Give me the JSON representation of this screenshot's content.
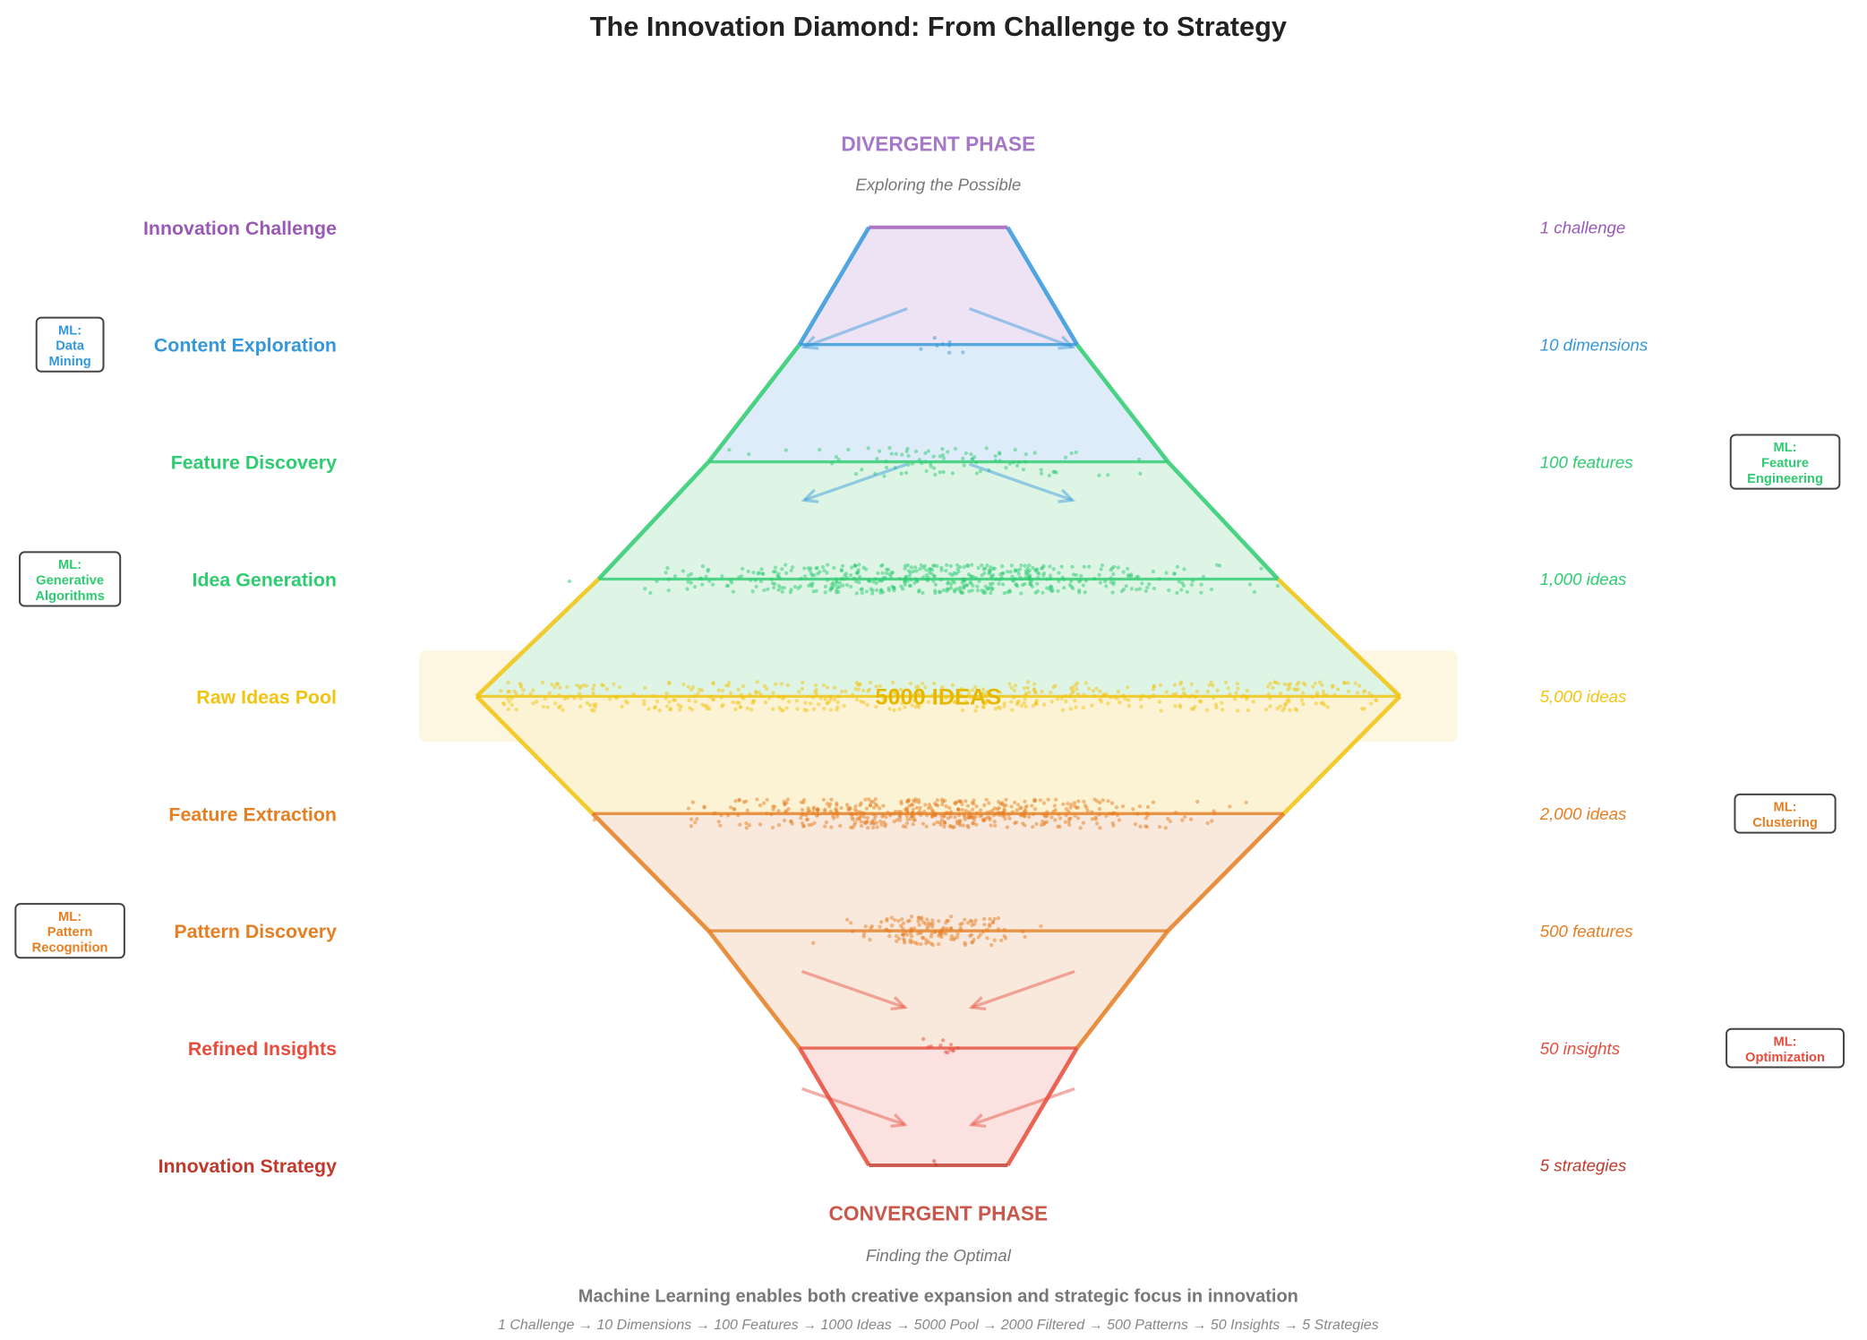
{
  "title": "The Innovation Diamond: From Challenge to Strategy",
  "divergent": {
    "label": "DIVERGENT PHASE",
    "subtitle": "Exploring the Possible",
    "color": "#a678c8"
  },
  "convergent": {
    "label": "CONVERGENT PHASE",
    "subtitle": "Finding the Optimal",
    "color": "#c9574b"
  },
  "center_label": "5000 IDEAS",
  "footer": {
    "main": "Machine Learning enables both creative expansion and strategic focus in innovation",
    "flow": "1 Challenge → 10 Dimensions → 100 Features → 1000 Ideas → 5000 Pool → 2000 Filtered → 500 Patterns → 50 Insights → 5 Strategies"
  },
  "chart_data": {
    "type": "diamond",
    "stages": [
      {
        "name": "Innovation Challenge",
        "count_label": "1 challenge",
        "count": 1,
        "color": "#9b59b6"
      },
      {
        "name": "Content Exploration",
        "count_label": "10 dimensions",
        "count": 10,
        "color": "#3498db"
      },
      {
        "name": "Feature Discovery",
        "count_label": "100 features",
        "count": 100,
        "color": "#2ecc71"
      },
      {
        "name": "Idea Generation",
        "count_label": "1,000 ideas",
        "count": 1000,
        "color": "#2ecc71"
      },
      {
        "name": "Raw Ideas Pool",
        "count_label": "5,000 ideas",
        "count": 5000,
        "color": "#f1c40f"
      },
      {
        "name": "Feature Extraction",
        "count_label": "2,000 ideas",
        "count": 2000,
        "color": "#e67e22"
      },
      {
        "name": "Pattern Discovery",
        "count_label": "500 features",
        "count": 500,
        "color": "#e67e22"
      },
      {
        "name": "Refined Insights",
        "count_label": "50 insights",
        "count": 50,
        "color": "#e74c3c"
      },
      {
        "name": "Innovation Strategy",
        "count_label": "5 strategies",
        "count": 5,
        "color": "#c0392b"
      }
    ],
    "ml_annotations": [
      {
        "stage": 1,
        "side": "left",
        "lines": [
          "ML:",
          "Data",
          "Mining"
        ]
      },
      {
        "stage": 2,
        "side": "right",
        "lines": [
          "ML:",
          "Feature",
          "Engineering"
        ]
      },
      {
        "stage": 3,
        "side": "left",
        "lines": [
          "ML:",
          "Generative",
          "Algorithms"
        ]
      },
      {
        "stage": 5,
        "side": "right",
        "lines": [
          "ML:",
          "Clustering"
        ]
      },
      {
        "stage": 6,
        "side": "left",
        "lines": [
          "ML:",
          "Pattern",
          "Recognition"
        ]
      },
      {
        "stage": 7,
        "side": "right",
        "lines": [
          "ML:",
          "Optimization"
        ]
      }
    ]
  }
}
